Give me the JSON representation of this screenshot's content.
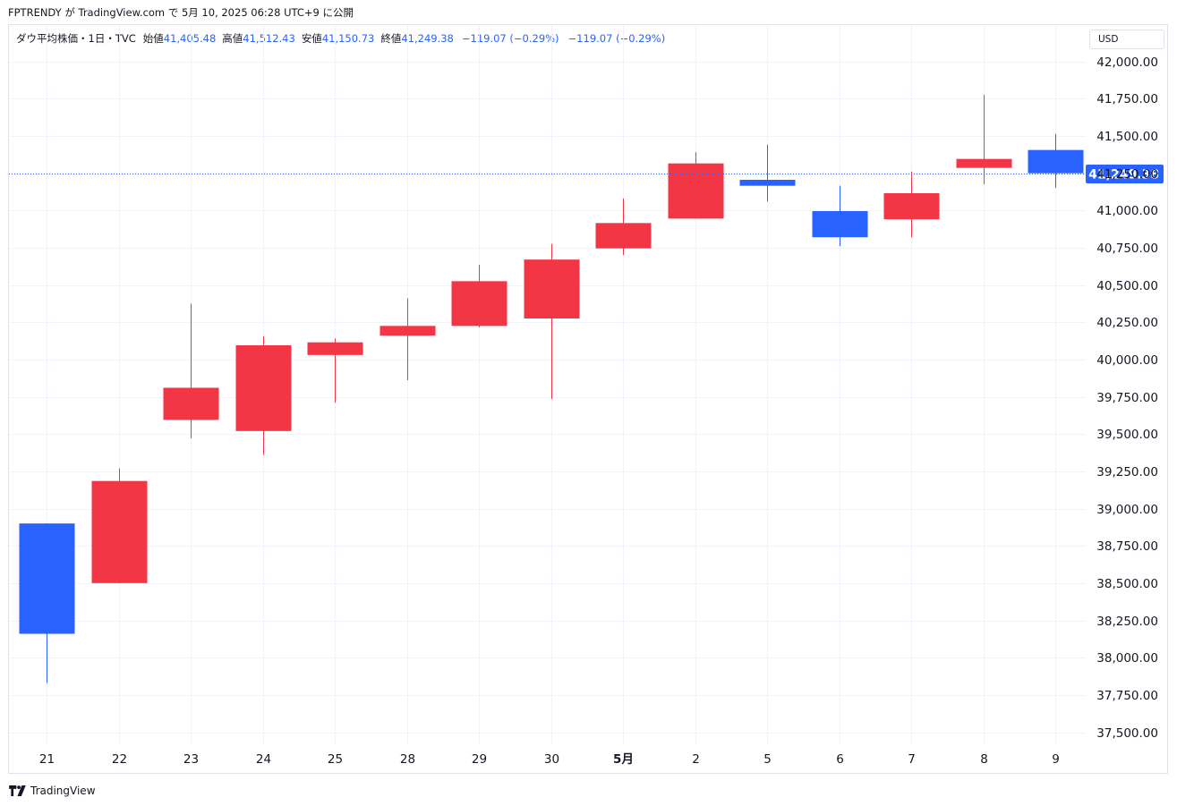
{
  "header": {
    "publish_line": "FPTRENDY が TradingView.com で 5月 10, 2025 06:28 UTC+9 に公開"
  },
  "legend": {
    "symbol": "ダウ平均株価・1日・TVC",
    "open_label": "始値",
    "open": "41,405.48",
    "high_label": "高値",
    "high": "41,512.43",
    "low_label": "安値",
    "low": "41,150.73",
    "close_label": "終値",
    "close": "41,249.38",
    "change1": "−119.07 (−0.29%)",
    "change2": "−119.07 (−0.29%)"
  },
  "currency": "USD",
  "footer": {
    "brand": "TradingView"
  },
  "colors": {
    "up": "#f23645",
    "down": "#2962ff",
    "grid": "#f0f3fa",
    "price_line": "#2962ff"
  },
  "chart_data": {
    "type": "candlestick",
    "categories": [
      "21",
      "22",
      "23",
      "24",
      "25",
      "28",
      "29",
      "30",
      "5月",
      "2",
      "5",
      "6",
      "7",
      "8",
      "9"
    ],
    "bold_categories": [
      "5月"
    ],
    "ohlc": [
      {
        "open": 38900,
        "high": 38900,
        "low": 37830,
        "close": 38160
      },
      {
        "open": 38500,
        "high": 39270,
        "low": 38500,
        "close": 39185
      },
      {
        "open": 39595,
        "high": 40375,
        "low": 39470,
        "close": 39810
      },
      {
        "open": 39520,
        "high": 40155,
        "low": 39360,
        "close": 40095
      },
      {
        "open": 40030,
        "high": 40140,
        "low": 39710,
        "close": 40115
      },
      {
        "open": 40160,
        "high": 40410,
        "low": 39860,
        "close": 40225
      },
      {
        "open": 40225,
        "high": 40635,
        "low": 40215,
        "close": 40525
      },
      {
        "open": 40275,
        "high": 40775,
        "low": 39735,
        "close": 40670
      },
      {
        "open": 40745,
        "high": 41080,
        "low": 40700,
        "close": 40915
      },
      {
        "open": 40945,
        "high": 41390,
        "low": 40945,
        "close": 41315
      },
      {
        "open": 41205,
        "high": 41440,
        "low": 41060,
        "close": 41165
      },
      {
        "open": 40995,
        "high": 41165,
        "low": 40760,
        "close": 40820
      },
      {
        "open": 40940,
        "high": 41260,
        "low": 40820,
        "close": 41115
      },
      {
        "open": 41285,
        "high": 41775,
        "low": 41175,
        "close": 41345
      },
      {
        "open": 41405,
        "high": 41512,
        "low": 41151,
        "close": 41249
      }
    ],
    "y_ticks": [
      42000,
      41750,
      41500,
      41250,
      41000,
      40750,
      40500,
      40250,
      40000,
      39750,
      39500,
      39250,
      39000,
      38750,
      38500,
      38250,
      38000,
      37750,
      37500
    ],
    "y_tick_labels": [
      "42,000.00",
      "41,750.00",
      "41,500.00",
      "41,250.00",
      "41,000.00",
      "40,750.00",
      "40,500.00",
      "40,250.00",
      "40,000.00",
      "39,750.00",
      "39,500.00",
      "39,250.00",
      "39,000.00",
      "38,750.00",
      "38,500.00",
      "38,250.00",
      "38,000.00",
      "37,750.00",
      "37,500.00"
    ],
    "ylim": [
      37460,
      42050
    ],
    "last_price": 41249.38,
    "last_price_label": "41,249.38",
    "grid": true
  }
}
